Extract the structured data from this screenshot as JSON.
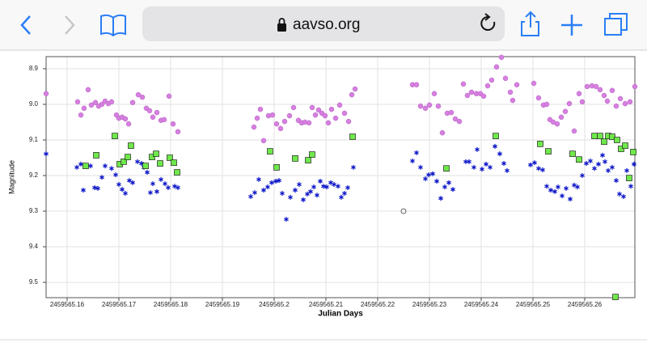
{
  "browser": {
    "url": "aavso.org"
  },
  "chart_data": {
    "type": "scatter",
    "xlabel": "Julian Days",
    "ylabel": "Magnitude",
    "xlim": [
      2459565.15594,
      2459565.26969
    ],
    "ylim": [
      8.866,
      9.543
    ],
    "y_inverted": true,
    "grid": true,
    "xticks": [
      2459565.16,
      2459565.17,
      2459565.18,
      2459565.19,
      2459565.2,
      2459565.21,
      2459565.22,
      2459565.23,
      2459565.24,
      2459565.25,
      2459565.26
    ],
    "yticks": [
      8.9,
      {
        "value": 9,
        "label": "9.0"
      },
      9.1,
      9.2,
      9.3,
      9.4,
      9.5
    ],
    "series": [
      {
        "color": "#d77fe0",
        "marker": "circle",
        "x": [
          2459565.15594,
          2459565.16203,
          2459565.16266,
          2459565.16328,
          2459565.16406,
          2459565.16469,
          2459565.16547,
          2459565.16609,
          2459565.16672,
          2459565.16734,
          2459565.16797,
          2459565.16859,
          2459565.16953,
          2459565.17,
          2459565.17063,
          2459565.17125,
          2459565.17188,
          2459565.17266,
          2459565.17375,
          2459565.17453,
          2459565.17531,
          2459565.17594,
          2459565.17656,
          2459565.17734,
          2459565.17813,
          2459565.17875,
          2459565.17969,
          2459565.18047,
          2459565.18141,
          2459565.19609,
          2459565.19672,
          2459565.19734,
          2459565.19797,
          2459565.19891,
          2459565.19969,
          2459565.20047,
          2459565.20125,
          2459565.20203,
          2459565.20297,
          2459565.20375,
          2459565.20469,
          2459565.20531,
          2459565.20594,
          2459565.20672,
          2459565.20734,
          2459565.20797,
          2459565.20859,
          2459565.20922,
          2459565.20984,
          2459565.21047,
          2459565.21109,
          2459565.21188,
          2459565.21266,
          2459565.21359,
          2459565.21438,
          2459565.215,
          2459565.21563,
          2459565.22672,
          2459565.2275,
          2459565.22828,
          2459565.22922,
          2459565.23,
          2459565.23094,
          2459565.23172,
          2459565.2325,
          2459565.23344,
          2459565.23422,
          2459565.235,
          2459565.23578,
          2459565.23656,
          2459565.23734,
          2459565.23813,
          2459565.23906,
          2459565.23984,
          2459565.24047,
          2459565.24125,
          2459565.24203,
          2459565.24297,
          2459565.24391,
          2459565.24469,
          2459565.24563,
          2459565.24609,
          2459565.24688,
          2459565.25016,
          2459565.25109,
          2459565.25203,
          2459565.25266,
          2459565.25328,
          2459565.25391,
          2459565.25469,
          2459565.25547,
          2459565.25625,
          2459565.25703,
          2459565.25797,
          2459565.25891,
          2459565.25953,
          2459565.26047,
          2459565.26141,
          2459565.26219,
          2459565.26297,
          2459565.26375,
          2459565.26438,
          2459565.26531,
          2459565.26609,
          2459565.26688,
          2459565.26781,
          2459565.26875,
          2459565.26969
        ],
        "values": [
          8.97,
          8.993,
          9.03,
          9.011,
          8.959,
          9.002,
          8.995,
          9.005,
          9.0,
          8.991,
          8.998,
          8.993,
          9.03,
          9.039,
          9.036,
          9.041,
          9.055,
          8.995,
          8.973,
          8.98,
          9.011,
          9.018,
          9.036,
          9.023,
          9.045,
          9.043,
          8.977,
          9.055,
          9.077,
          9.064,
          9.039,
          9.014,
          9.102,
          9.032,
          9.03,
          9.055,
          9.068,
          9.048,
          9.032,
          9.009,
          9.045,
          9.052,
          9.05,
          9.052,
          9.009,
          9.03,
          9.016,
          9.025,
          9.032,
          9.052,
          9.014,
          9.039,
          9.002,
          9.025,
          9.048,
          8.973,
          8.957,
          8.945,
          8.945,
          9.005,
          9.011,
          9.002,
          8.97,
          9.005,
          9.08,
          9.025,
          9.023,
          9.041,
          9.048,
          8.943,
          8.975,
          8.966,
          8.97,
          8.97,
          8.977,
          8.948,
          8.932,
          8.895,
          8.868,
          8.927,
          8.966,
          8.989,
          8.945,
          8.941,
          8.982,
          9.002,
          9.0,
          9.043,
          9.05,
          9.055,
          9.036,
          9.02,
          8.998,
          9.075,
          8.97,
          8.993,
          8.95,
          8.948,
          8.95,
          8.959,
          8.975,
          8.991,
          8.961,
          9.005,
          8.984,
          8.998,
          8.993,
          8.95
        ]
      },
      {
        "color": "#0b14c8",
        "marker": "star",
        "x": [
          2459565.15594,
          2459565.16188,
          2459565.16266,
          2459565.16313,
          2459565.16375,
          2459565.16453,
          2459565.16531,
          2459565.16594,
          2459565.16672,
          2459565.16734,
          2459565.16859,
          2459565.16938,
          2459565.17,
          2459565.17063,
          2459565.17125,
          2459565.17203,
          2459565.17266,
          2459565.17359,
          2459565.17438,
          2459565.17484,
          2459565.17547,
          2459565.17609,
          2459565.17656,
          2459565.17734,
          2459565.17813,
          2459565.17891,
          2459565.17953,
          2459565.18078,
          2459565.18141,
          2459565.19547,
          2459565.19625,
          2459565.19703,
          2459565.19797,
          2459565.19875,
          2459565.19953,
          2459565.20031,
          2459565.20094,
          2459565.20156,
          2459565.20234,
          2459565.20313,
          2459565.20406,
          2459565.20484,
          2459565.20563,
          2459565.20641,
          2459565.20703,
          2459565.20766,
          2459565.20828,
          2459565.20891,
          2459565.20953,
          2459565.21016,
          2459565.21094,
          2459565.21156,
          2459565.21234,
          2459565.21297,
          2459565.21359,
          2459565.21422,
          2459565.21531,
          2459565.22672,
          2459565.2275,
          2459565.22828,
          2459565.22922,
          2459565.22984,
          2459565.23063,
          2459565.23141,
          2459565.23219,
          2459565.23297,
          2459565.23375,
          2459565.23453,
          2459565.23703,
          2459565.23766,
          2459565.23859,
          2459565.23922,
          2459565.24016,
          2459565.24094,
          2459565.24172,
          2459565.24266,
          2459565.24359,
          2459565.24438,
          2459565.245,
          2459565.24953,
          2459565.25031,
          2459565.25109,
          2459565.25188,
          2459565.25266,
          2459565.25344,
          2459565.25422,
          2459565.25484,
          2459565.25563,
          2459565.25641,
          2459565.25719,
          2459565.25797,
          2459565.25859,
          2459565.25953,
          2459565.26031,
          2459565.26109,
          2459565.26188,
          2459565.26266,
          2459565.26344,
          2459565.26391,
          2459565.26453,
          2459565.26531,
          2459565.26609,
          2459565.26672,
          2459565.2675,
          2459565.26813,
          2459565.26891,
          2459565.26953
        ],
        "values": [
          9.139,
          9.177,
          9.168,
          9.241,
          9.173,
          9.173,
          9.234,
          9.236,
          9.205,
          9.173,
          9.18,
          9.198,
          9.225,
          9.239,
          9.25,
          9.214,
          9.22,
          9.161,
          9.166,
          9.177,
          9.191,
          9.248,
          9.223,
          9.245,
          9.211,
          9.223,
          9.234,
          9.23,
          9.234,
          9.259,
          9.248,
          9.211,
          9.241,
          9.232,
          9.22,
          9.216,
          9.214,
          9.25,
          9.323,
          9.261,
          9.241,
          9.225,
          9.268,
          9.252,
          9.245,
          9.232,
          9.255,
          9.216,
          9.23,
          9.232,
          9.22,
          9.225,
          9.23,
          9.261,
          9.25,
          9.234,
          9.177,
          9.159,
          9.136,
          9.177,
          9.209,
          9.198,
          9.195,
          9.216,
          9.264,
          9.232,
          9.22,
          9.239,
          9.161,
          9.161,
          9.177,
          9.127,
          9.182,
          9.168,
          9.177,
          9.118,
          9.139,
          9.166,
          9.186,
          9.17,
          9.164,
          9.18,
          9.184,
          9.23,
          9.241,
          9.245,
          9.232,
          9.257,
          9.236,
          9.266,
          9.227,
          9.232,
          9.2,
          9.166,
          9.159,
          9.18,
          9.168,
          9.143,
          9.161,
          9.186,
          9.177,
          9.214,
          9.252,
          9.259,
          9.186,
          9.23,
          9.168
        ]
      },
      {
        "color": "#6ee84a",
        "marker": "square",
        "x": [
          2459565.16922,
          2459565.16563,
          2459565.16359,
          2459565.17016,
          2459565.17094,
          2459565.17172,
          2459565.17234,
          2459565.17516,
          2459565.17641,
          2459565.17719,
          2459565.17797,
          2459565.17984,
          2459565.18063,
          2459565.18125,
          2459565.19922,
          2459565.20047,
          2459565.20406,
          2459565.20656,
          2459565.20734,
          2459565.21516,
          2459565.23328,
          2459565.24281,
          2459565.25141,
          2459565.25297,
          2459565.25766,
          2459565.25891,
          2459565.26188,
          2459565.26297,
          2459565.26375,
          2459565.26453,
          2459565.26531,
          2459565.26625,
          2459565.26703,
          2459565.26781,
          2459565.26859,
          2459565.26938,
          2459565.26594
        ],
        "values": [
          9.089,
          9.143,
          9.173,
          9.168,
          9.161,
          9.148,
          9.116,
          9.173,
          9.148,
          9.139,
          9.166,
          9.15,
          9.164,
          9.191,
          9.132,
          9.177,
          9.152,
          9.157,
          9.141,
          9.091,
          9.18,
          9.089,
          9.111,
          9.132,
          9.139,
          9.155,
          9.089,
          9.089,
          9.105,
          9.089,
          9.091,
          9.1,
          9.125,
          9.116,
          9.207,
          9.134,
          9.541
        ]
      },
      {
        "color": "#444444",
        "marker": "open-circle",
        "x": [
          2459565.225
        ],
        "values": [
          9.3
        ]
      }
    ]
  }
}
